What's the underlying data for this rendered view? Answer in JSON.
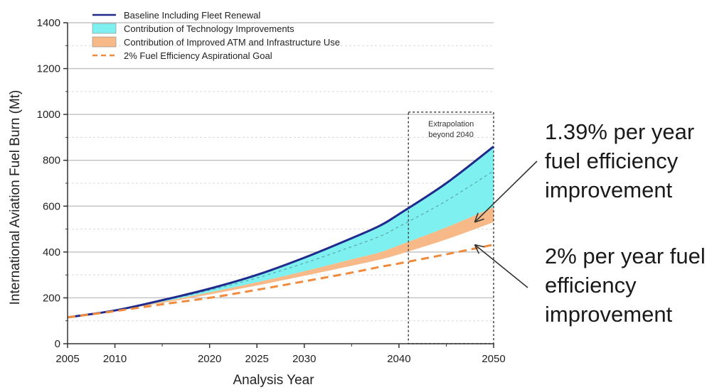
{
  "chart_data": {
    "type": "area",
    "xlabel": "Analysis Year",
    "ylabel": "International Aviation Fuel Burn (Mt)",
    "xlim": [
      2005,
      2050
    ],
    "ylim": [
      0,
      1400
    ],
    "x_ticks": [
      2005,
      2010,
      2020,
      2025,
      2030,
      2040,
      2050
    ],
    "y_ticks": [
      0,
      200,
      400,
      600,
      800,
      1000,
      1200,
      1400
    ],
    "grid": true,
    "legend_position": "top-left",
    "years": [
      2005,
      2010,
      2015,
      2020,
      2025,
      2030,
      2035,
      2038,
      2040,
      2045,
      2050
    ],
    "series": [
      {
        "name": "Baseline Including Fleet Renewal",
        "kind": "line",
        "color": "#1f2a8c",
        "values": [
          115,
          145,
          190,
          240,
          300,
          375,
          460,
          515,
          565,
          700,
          860
        ]
      },
      {
        "name": "Contribution of Technology Improvements",
        "kind": "band",
        "color": "#7ff0f0",
        "upper": [
          115,
          145,
          190,
          240,
          300,
          375,
          460,
          515,
          565,
          700,
          860
        ],
        "lower": [
          115,
          145,
          183,
          224,
          268,
          316,
          368,
          399,
          429,
          507,
          595
        ]
      },
      {
        "name": "Contribution of Improved ATM and Infrastructure Use",
        "kind": "band",
        "color": "#f7b987",
        "upper": [
          115,
          145,
          183,
          224,
          268,
          316,
          368,
          399,
          429,
          507,
          595
        ],
        "lower": [
          115,
          145,
          178,
          215,
          254,
          296,
          340,
          367,
          390,
          455,
          530
        ]
      },
      {
        "name": "2% Fuel Efficiency Aspirational Goal",
        "kind": "dashed",
        "color": "#f08a3c",
        "values": [
          115,
          142,
          172,
          200,
          235,
          272,
          310,
          335,
          350,
          390,
          432
        ]
      }
    ],
    "extrapolation_region": {
      "x_start": 2041,
      "x_end": 2050,
      "label": "Extrapolation beyond 2040"
    },
    "annotations": [
      {
        "text": "1.39% per year fuel efficiency improvement",
        "points_to_year": 2048,
        "points_to_value": 530
      },
      {
        "text": "2% per year fuel efficiency improvement",
        "points_to_year": 2048,
        "points_to_value": 432
      }
    ]
  },
  "annotations_text": {
    "a1_line1": "1.39% per year",
    "a1_line2": "fuel efficiency",
    "a1_line3": "improvement",
    "a2_line1": "2% per year fuel",
    "a2_line2": "efficiency",
    "a2_line3": "improvement"
  },
  "extrapolation_line1": "Extrapolation",
  "extrapolation_line2": "beyond 2040"
}
